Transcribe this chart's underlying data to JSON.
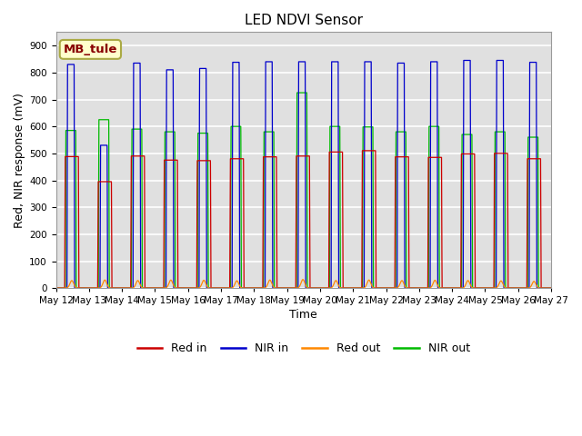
{
  "title": "LED NDVI Sensor",
  "xlabel": "Time",
  "ylabel": "Red, NIR response (mV)",
  "legend_label": "MB_tule",
  "legend_entries": [
    "Red in",
    "NIR in",
    "Red out",
    "NIR out"
  ],
  "legend_colors": [
    "#cc0000",
    "#0000cc",
    "#ff8800",
    "#00bb00"
  ],
  "ylim": [
    0,
    950
  ],
  "yticks": [
    0,
    100,
    200,
    300,
    400,
    500,
    600,
    700,
    800,
    900
  ],
  "n_days": 15,
  "xtick_labels": [
    "May 12",
    "May 13",
    "May 14",
    "May 15",
    "May 16",
    "May 17",
    "May 18",
    "May 19",
    "May 20",
    "May 21",
    "May 22",
    "May 23",
    "May 24",
    "May 25",
    "May 26",
    "May 27"
  ],
  "background_color": "#ffffff",
  "plot_bg_color": "#e0e0e0",
  "grid_color": "#ffffff",
  "title_fontsize": 11,
  "axis_label_fontsize": 9,
  "tick_label_fontsize": 7.5,
  "legend_fontsize": 9,
  "red_in_amps": [
    488,
    395,
    490,
    475,
    473,
    480,
    487,
    490,
    505,
    510,
    487,
    485,
    498,
    500,
    480
  ],
  "nir_in_amps": [
    830,
    530,
    835,
    810,
    815,
    838,
    840,
    840,
    840,
    840,
    835,
    840,
    845,
    845,
    838
  ],
  "nir_out_amps": [
    585,
    625,
    590,
    580,
    575,
    600,
    580,
    725,
    600,
    598,
    580,
    600,
    570,
    580,
    560
  ],
  "red_out_amps": [
    28,
    30,
    28,
    30,
    29,
    27,
    30,
    32,
    28,
    30,
    28,
    29,
    28,
    27,
    25
  ],
  "pulse_on": 0.28,
  "pulse_off": 0.68,
  "nir_in_on": 0.35,
  "nir_in_off": 0.55,
  "nir_out_on": 0.3,
  "nir_out_off": 0.6
}
